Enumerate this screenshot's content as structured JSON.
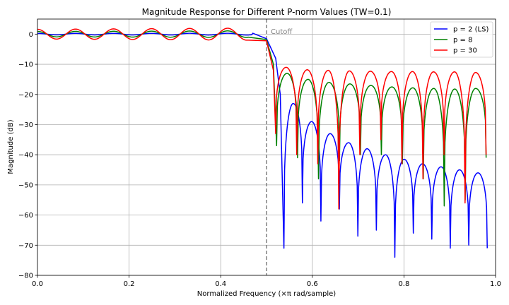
{
  "chart_data": {
    "type": "line",
    "title": "Magnitude Response for Different P-norm Values (TW=0.1)",
    "xlabel": "Normalized Frequency (×π rad/sample)",
    "ylabel": "Magnitude (dB)",
    "xlim": [
      0,
      1
    ],
    "ylim": [
      -80,
      5
    ],
    "xticks": [
      0.0,
      0.2,
      0.4,
      0.6,
      0.8,
      1.0
    ],
    "xtick_labels": [
      "0.0",
      "0.2",
      "0.4",
      "0.6",
      "0.8",
      "1.0"
    ],
    "yticks": [
      0,
      -10,
      -20,
      -30,
      -40,
      -50,
      -60,
      -70,
      -80
    ],
    "ytick_labels": [
      "0",
      "−10",
      "−20",
      "−30",
      "−40",
      "−50",
      "−60",
      "−70",
      "−80"
    ],
    "grid": true,
    "legend_position": "top-right",
    "cutoff": {
      "x": 0.5,
      "label": "Cutoff",
      "style": "dashed",
      "color": "#808080"
    },
    "passband_ripple_period": 0.083,
    "series": [
      {
        "name": "p = 2 (LS)",
        "color": "#0000ff",
        "passband_ripple_db": 0.3,
        "transition_points": [
          [
            0.47,
            0.3
          ],
          [
            0.5,
            -1.5
          ],
          [
            0.52,
            -8
          ],
          [
            0.53,
            -20
          ],
          [
            0.538,
            -71
          ]
        ],
        "lobe_peaks_db": [
          -23,
          -29,
          -33,
          -36,
          -38,
          -40,
          -41.5,
          -43,
          -44,
          -45,
          -46
        ],
        "null_depths_db": [
          -71,
          -56,
          -62,
          -58,
          -67,
          -65,
          -74,
          -66,
          -68,
          -71,
          -70,
          -71
        ]
      },
      {
        "name": "p = 8",
        "color": "#008000",
        "passband_ripple_db": 1.1,
        "transition_points": [
          [
            0.46,
            -1
          ],
          [
            0.5,
            -1.8
          ],
          [
            0.515,
            -10
          ],
          [
            0.522,
            -37
          ]
        ],
        "lobe_peaks_db": [
          -13,
          -15,
          -16,
          -16.5,
          -17,
          -17.5,
          -17.8,
          -18,
          -18.2,
          -18
        ],
        "null_depths_db": [
          -37,
          -41,
          -48,
          -42,
          -40,
          -40,
          -43,
          -48,
          -57,
          -55,
          -41
        ]
      },
      {
        "name": "p = 30",
        "color": "#ff0000",
        "passband_ripple_db": 2.0,
        "transition_points": [
          [
            0.46,
            -2
          ],
          [
            0.5,
            -2.2
          ],
          [
            0.515,
            -12
          ],
          [
            0.52,
            -33
          ]
        ],
        "lobe_peaks_db": [
          -11,
          -11.8,
          -12,
          -12.2,
          -12.3,
          -12.4,
          -12.4,
          -12.5,
          -12.5,
          -12.7
        ],
        "null_depths_db": [
          -33,
          -40,
          -43,
          -58,
          -40,
          -35,
          -43,
          -48,
          -40,
          -56,
          -40
        ]
      }
    ]
  }
}
